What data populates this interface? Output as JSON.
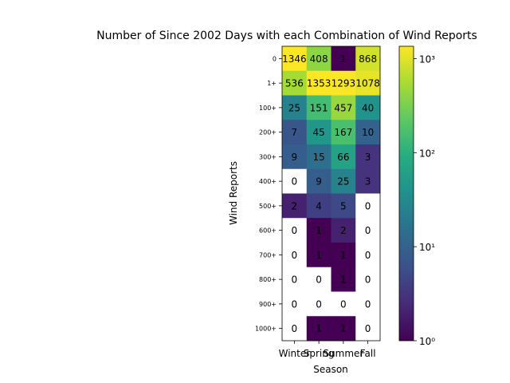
{
  "chart_data": {
    "type": "heatmap",
    "title": "Number of Since 2002 Days with each Combination of Wind Reports",
    "xlabel": "Season",
    "ylabel": "Wind Reports",
    "x_categories": [
      "Winter",
      "Spring",
      "Summer",
      "Fall"
    ],
    "y_categories": [
      "0",
      "1+",
      "100+",
      "200+",
      "300+",
      "400+",
      "500+",
      "600+",
      "700+",
      "800+",
      "900+",
      "1000+"
    ],
    "values": [
      [
        1346,
        408,
        1,
        868
      ],
      [
        536,
        1353,
        1293,
        1078
      ],
      [
        25,
        151,
        457,
        40
      ],
      [
        7,
        45,
        167,
        10
      ],
      [
        9,
        15,
        66,
        3
      ],
      [
        0,
        9,
        25,
        3
      ],
      [
        2,
        4,
        5,
        0
      ],
      [
        0,
        1,
        2,
        0
      ],
      [
        0,
        1,
        1,
        0
      ],
      [
        0,
        0,
        1,
        0
      ],
      [
        0,
        0,
        0,
        0
      ],
      [
        0,
        1,
        1,
        0
      ]
    ],
    "color_scale": "log",
    "colormap": "viridis",
    "colorbar": {
      "range": [
        1,
        1353
      ],
      "ticks": [
        {
          "value": 1,
          "label": "10⁰"
        },
        {
          "value": 10,
          "label": "10¹"
        },
        {
          "value": 100,
          "label": "10²"
        },
        {
          "value": 1000,
          "label": "10³"
        }
      ]
    },
    "zero_color": "#ffffff",
    "grid": false
  }
}
